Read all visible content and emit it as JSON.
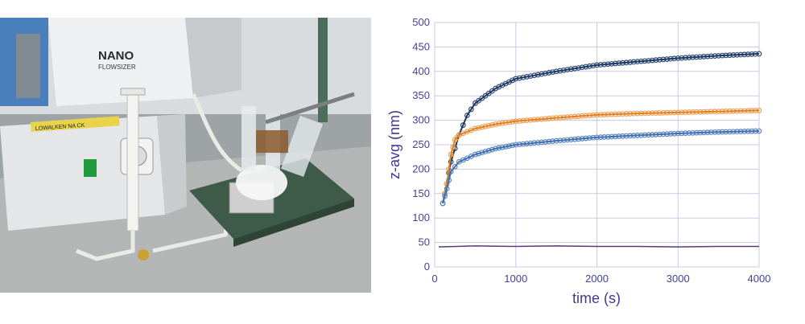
{
  "photo": {
    "device_brand": "NANO",
    "device_model": "FLOWSIZER",
    "label_tape": "LOWALKEN NA CK",
    "icon": "apparatus-photo"
  },
  "chart_data": {
    "type": "scatter",
    "title": "",
    "xlabel": "time (s)",
    "ylabel": "z-avg (nm)",
    "xlim": [
      0,
      4000
    ],
    "ylim": [
      0,
      500
    ],
    "xticks": [
      "0",
      "1000",
      "2000",
      "3000",
      "4000"
    ],
    "yticks": [
      "0",
      "50",
      "100",
      "150",
      "200",
      "250",
      "300",
      "350",
      "400",
      "450",
      "500"
    ],
    "grid": true,
    "legend": "none",
    "series": [
      {
        "color": "#2e4a79",
        "fit_color": "#1e3560",
        "points": [
          [
            100,
            130
          ],
          [
            150,
            170
          ],
          [
            200,
            215
          ],
          [
            300,
            270
          ],
          [
            400,
            310
          ],
          [
            500,
            335
          ],
          [
            750,
            365
          ],
          [
            1000,
            385
          ],
          [
            1500,
            400
          ],
          [
            2000,
            413
          ],
          [
            2500,
            420
          ],
          [
            3000,
            427
          ],
          [
            3500,
            432
          ],
          [
            4000,
            436
          ]
        ]
      },
      {
        "color": "#f0a050",
        "fit_color": "#e07f22",
        "points": [
          [
            100,
            130
          ],
          [
            150,
            170
          ],
          [
            200,
            230
          ],
          [
            250,
            260
          ],
          [
            300,
            270
          ],
          [
            500,
            283
          ],
          [
            750,
            292
          ],
          [
            1000,
            298
          ],
          [
            1500,
            305
          ],
          [
            2000,
            311
          ],
          [
            2500,
            314
          ],
          [
            3000,
            316
          ],
          [
            3500,
            318
          ],
          [
            4000,
            320
          ]
        ]
      },
      {
        "color": "#5b86c0",
        "fit_color": "#3f6fb0",
        "points": [
          [
            100,
            130
          ],
          [
            150,
            160
          ],
          [
            200,
            195
          ],
          [
            300,
            215
          ],
          [
            500,
            230
          ],
          [
            750,
            242
          ],
          [
            1000,
            250
          ],
          [
            1500,
            258
          ],
          [
            2000,
            265
          ],
          [
            2500,
            269
          ],
          [
            3000,
            273
          ],
          [
            3500,
            276
          ],
          [
            4000,
            278
          ]
        ]
      },
      {
        "color": "#5c3a78",
        "fit_color": "#5c3a78",
        "points": [
          [
            50,
            41
          ],
          [
            500,
            43
          ],
          [
            1000,
            42
          ],
          [
            1500,
            43
          ],
          [
            2000,
            42
          ],
          [
            2500,
            42
          ],
          [
            3000,
            41
          ],
          [
            3500,
            42
          ],
          [
            4000,
            42
          ]
        ]
      }
    ]
  }
}
